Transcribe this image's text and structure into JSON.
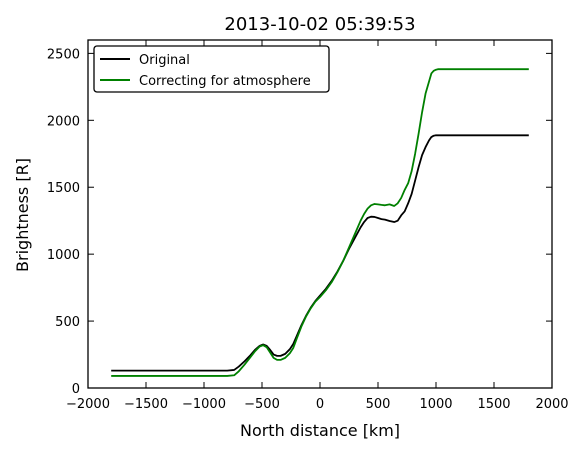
{
  "chart_data": {
    "type": "line",
    "title": "2013-10-02 05:39:53",
    "xlabel": "North distance [km]",
    "ylabel": "Brightness [R]",
    "xlim": [
      -2000,
      2000
    ],
    "ylim": [
      0,
      2600
    ],
    "xticks": [
      -2000,
      -1500,
      -1000,
      -500,
      0,
      500,
      1000,
      1500,
      2000
    ],
    "yticks": [
      0,
      500,
      1000,
      1500,
      2000,
      2500
    ],
    "legend": "top-left",
    "grid": false,
    "series": [
      {
        "name": "Original",
        "color": "#000000",
        "x": [
          -1800,
          -1200,
          -800,
          -740,
          -700,
          -650,
          -600,
          -560,
          -520,
          -490,
          -460,
          -430,
          -400,
          -370,
          -340,
          -300,
          -260,
          -230,
          -200,
          -160,
          -120,
          -80,
          -40,
          0,
          50,
          100,
          150,
          200,
          250,
          300,
          350,
          380,
          410,
          440,
          470,
          500,
          530,
          560,
          600,
          640,
          670,
          700,
          730,
          760,
          790,
          820,
          850,
          880,
          910,
          940,
          960,
          980,
          1000,
          1020,
          1050,
          1100,
          1200,
          1400,
          1600,
          1800
        ],
        "y": [
          130,
          130,
          130,
          135,
          160,
          200,
          245,
          285,
          315,
          325,
          315,
          285,
          250,
          240,
          240,
          255,
          290,
          330,
          390,
          470,
          540,
          600,
          650,
          690,
          740,
          800,
          870,
          950,
          1040,
          1120,
          1200,
          1240,
          1270,
          1280,
          1278,
          1270,
          1262,
          1258,
          1248,
          1240,
          1250,
          1290,
          1320,
          1380,
          1450,
          1550,
          1650,
          1740,
          1800,
          1850,
          1875,
          1885,
          1888,
          1888,
          1888,
          1888,
          1888,
          1888,
          1888,
          1888
        ]
      },
      {
        "name": "Correcting for atmosphere",
        "color": "#008000",
        "x": [
          -1800,
          -1200,
          -800,
          -740,
          -700,
          -650,
          -600,
          -560,
          -520,
          -490,
          -460,
          -430,
          -400,
          -370,
          -340,
          -300,
          -260,
          -230,
          -200,
          -160,
          -120,
          -80,
          -40,
          0,
          50,
          100,
          150,
          200,
          250,
          300,
          350,
          380,
          410,
          440,
          470,
          500,
          530,
          560,
          600,
          640,
          670,
          700,
          730,
          760,
          790,
          820,
          850,
          880,
          910,
          940,
          960,
          980,
          1000,
          1020,
          1050,
          1100,
          1200,
          1400,
          1600,
          1800
        ],
        "y": [
          90,
          90,
          90,
          95,
          125,
          175,
          230,
          275,
          310,
          320,
          305,
          265,
          225,
          210,
          210,
          225,
          260,
          300,
          370,
          460,
          535,
          595,
          645,
          680,
          730,
          790,
          865,
          950,
          1050,
          1150,
          1250,
          1300,
          1340,
          1365,
          1375,
          1372,
          1368,
          1365,
          1372,
          1360,
          1380,
          1420,
          1480,
          1530,
          1620,
          1750,
          1900,
          2060,
          2200,
          2290,
          2350,
          2370,
          2378,
          2382,
          2382,
          2382,
          2382,
          2382,
          2382,
          2382
        ]
      }
    ]
  }
}
